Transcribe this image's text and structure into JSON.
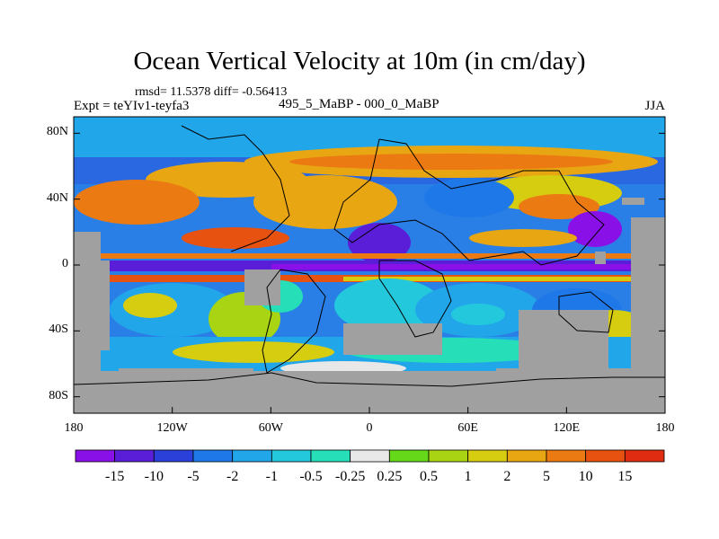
{
  "title": "Ocean Vertical Velocity at 10m (in cm/day)",
  "stats": "rmsd= 11.5378 diff= -0.56413",
  "expt": "Expt = teYIv1-teyfa3",
  "subtitle": "495_5_MaBP - 000_0_MaBP",
  "season": "JJA",
  "map": {
    "lat_ticks": [
      {
        "lat": 80,
        "label": "80N"
      },
      {
        "lat": 40,
        "label": "40N"
      },
      {
        "lat": 0,
        "label": "0"
      },
      {
        "lat": -40,
        "label": "40S"
      },
      {
        "lat": -80,
        "label": "80S"
      }
    ],
    "lon_ticks": [
      {
        "lon": -180,
        "label": "180"
      },
      {
        "lon": -120,
        "label": "120W"
      },
      {
        "lon": -60,
        "label": "60W"
      },
      {
        "lon": 0,
        "label": "0"
      },
      {
        "lon": 60,
        "label": "60E"
      },
      {
        "lon": 120,
        "label": "120E"
      },
      {
        "lon": 180,
        "label": "180"
      }
    ],
    "land_color": "#a0a0a0"
  },
  "colorbar": {
    "colors": [
      "#8a10e8",
      "#5a1ed8",
      "#2a40d8",
      "#1f78e8",
      "#22a6ea",
      "#24c8dc",
      "#26deb8",
      "#e8e8e8",
      "#66d81a",
      "#a8d414",
      "#d6cc10",
      "#e8a612",
      "#ec7a12",
      "#e85210",
      "#e02c10"
    ],
    "labels": [
      "-15",
      "-10",
      "-5",
      "-2",
      "-1",
      "-0.5",
      "-0.25",
      "0.25",
      "0.5",
      "1",
      "2",
      "5",
      "10",
      "15"
    ]
  }
}
